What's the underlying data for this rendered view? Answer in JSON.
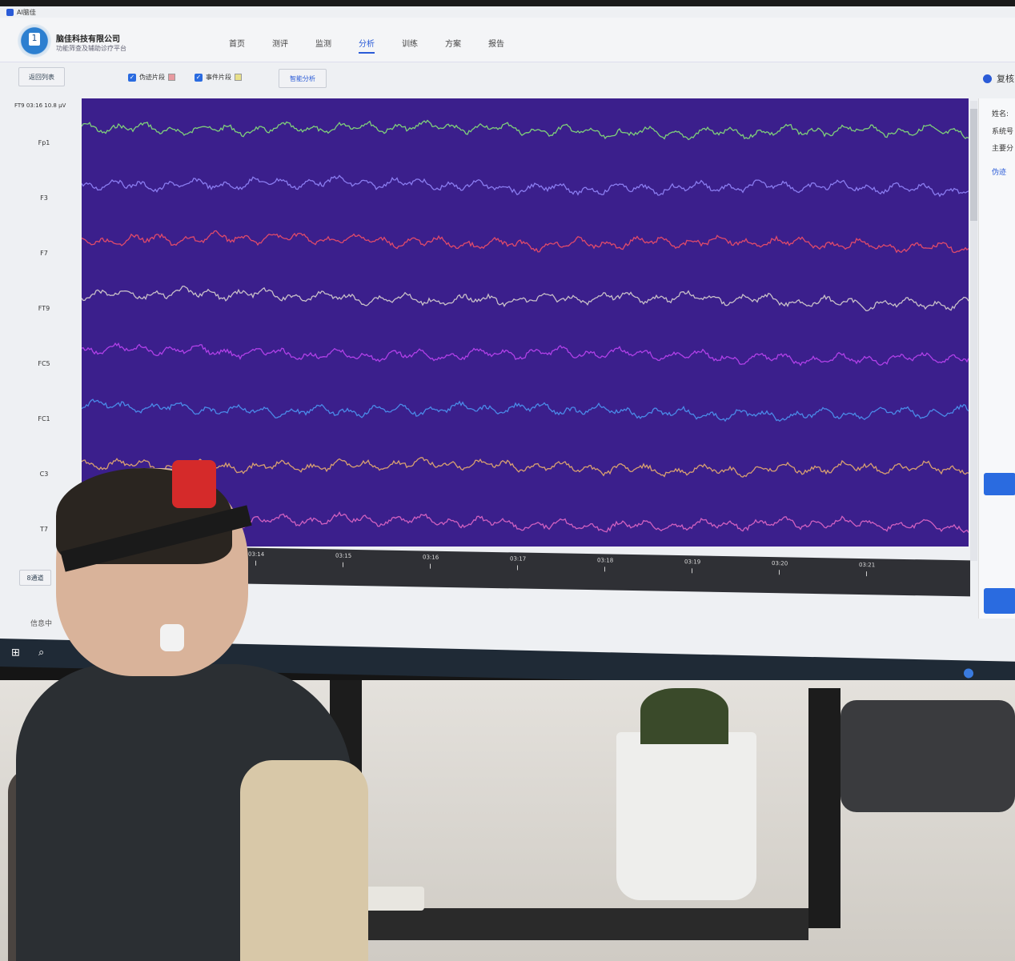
{
  "app": {
    "title": "AI脑佳",
    "logo_text": "1",
    "company": "脑佳科技有限公司",
    "slogan": "功能筛查及辅助诊疗平台"
  },
  "nav": [
    {
      "label": "首页"
    },
    {
      "label": "测评"
    },
    {
      "label": "监测"
    },
    {
      "label": "分析",
      "active": true
    },
    {
      "label": "训练"
    },
    {
      "label": "方案"
    },
    {
      "label": "报告"
    }
  ],
  "toolbar": {
    "back": "返回列表",
    "artifact": "伪迹片段",
    "artifact_color": "#e89aa0",
    "event": "事件片段",
    "event_color": "#e8e08a",
    "analyze": "智能分析",
    "status_label": "复核"
  },
  "readout": "FT9  03:16  10.8 μV",
  "channels": [
    {
      "name": "Fp1",
      "color": "#7fd07a"
    },
    {
      "name": "F3",
      "color": "#8a7cf0"
    },
    {
      "name": "F7",
      "color": "#e04a6a"
    },
    {
      "name": "FT9",
      "color": "#c8c0c8"
    },
    {
      "name": "FC5",
      "color": "#b040e8"
    },
    {
      "name": "FC1",
      "color": "#4a8ae8"
    },
    {
      "name": "C3",
      "color": "#d8a070"
    },
    {
      "name": "T7",
      "color": "#d060c0"
    }
  ],
  "time_ticks": [
    "03:14",
    "03:15",
    "03:16",
    "03:17",
    "03:18",
    "03:19",
    "03:20",
    "03:21"
  ],
  "channel_count_button": "8通道",
  "info_label": "信息中",
  "right_panel": {
    "name": "姓名:",
    "system": "系统号",
    "main": "主要分",
    "tab": "伪迹"
  },
  "colors": {
    "accent": "#2a5bd7",
    "plot_bg": "#3b1f8c"
  }
}
